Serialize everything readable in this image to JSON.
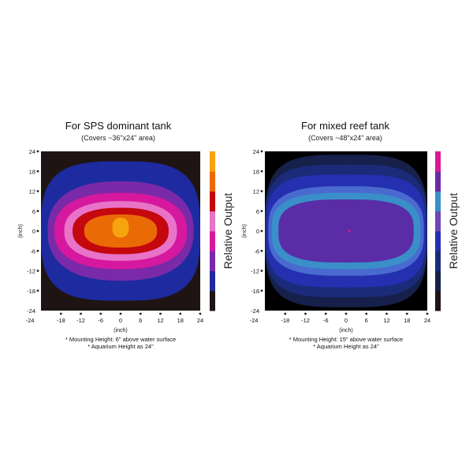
{
  "chart_data": [
    {
      "type": "heatmap",
      "title": "For SPS dominant tank",
      "subtitle": "(Covers ~36\"x24\" area)",
      "xlabel": "(inch)",
      "ylabel": "(inch)",
      "xlim": [
        -24,
        24
      ],
      "ylim": [
        -24,
        24
      ],
      "xticks": [
        "-24",
        "-18",
        "-12",
        "-6",
        "0",
        "6",
        "12",
        "18",
        "24"
      ],
      "yticks": [
        "24",
        "18",
        "12",
        "6",
        "0",
        "-6",
        "-12",
        "-18",
        "-24"
      ],
      "colorbar_label": "Relative Output",
      "colorbar_colors": [
        "#1f1414",
        "#1e2aa0",
        "#7a2aa8",
        "#d6189e",
        "#e873c8",
        "#c4080e",
        "#ea6a06",
        "#f5a30f"
      ],
      "contour_levels": [
        {
          "color": "#1f1414",
          "rx": 24,
          "ry": 24,
          "shape": "background"
        },
        {
          "color": "#1e2aa0",
          "rx": 24,
          "ry": 21
        },
        {
          "color": "#7a2aa8",
          "rx": 22,
          "ry": 15
        },
        {
          "color": "#d6189e",
          "rx": 20,
          "ry": 11.5
        },
        {
          "color": "#e873c8",
          "rx": 17,
          "ry": 9
        },
        {
          "color": "#c4080e",
          "rx": 14.5,
          "ry": 7
        },
        {
          "color": "#ea6a06",
          "rx": 11,
          "ry": 5
        },
        {
          "color": "#f5a30f",
          "rx": 2.5,
          "ry": 3,
          "cx": 0,
          "cy": 1
        }
      ],
      "notes": [
        "* Mounting Height: 6\" above water surface",
        "* Aquarium Height as 24\""
      ]
    },
    {
      "type": "heatmap",
      "title": "For mixed reef tank",
      "subtitle": "(Covers ~48\"x24\" area)",
      "xlabel": "(inch)",
      "ylabel": "(inch)",
      "xlim": [
        -24,
        24
      ],
      "ylim": [
        -24,
        24
      ],
      "xticks": [
        "-24",
        "-18",
        "-12",
        "-6",
        "0",
        "6",
        "12",
        "18",
        "24"
      ],
      "yticks": [
        "24",
        "18",
        "12",
        "6",
        "0",
        "-6",
        "-12",
        "-18",
        "-24"
      ],
      "colorbar_label": "Relative Output",
      "colorbar_colors": [
        "#1f1414",
        "#16204a",
        "#1b2b7a",
        "#2530b0",
        "#7045b5",
        "#3a8fc8",
        "#6a2aa8",
        "#d91a96"
      ],
      "contour_levels": [
        {
          "color": "#000000",
          "rx": 24,
          "ry": 24,
          "shape": "background"
        },
        {
          "color": "#16204a",
          "rx": 24,
          "ry": 23
        },
        {
          "color": "#1b2b7a",
          "rx": 24,
          "ry": 20
        },
        {
          "color": "#2530b0",
          "rx": 23.5,
          "ry": 17
        },
        {
          "color": "#4a6ad0",
          "rx": 23,
          "ry": 13.5
        },
        {
          "color": "#3a8fc8",
          "rx": 22,
          "ry": 11.5
        },
        {
          "color": "#5a2ca6",
          "rx": 20,
          "ry": 9.5
        }
      ],
      "center_marker_color": "#e01a8a",
      "notes": [
        "* Mounting Height: 15\" above water surface",
        "* Aquarium Height as 24\""
      ]
    }
  ]
}
